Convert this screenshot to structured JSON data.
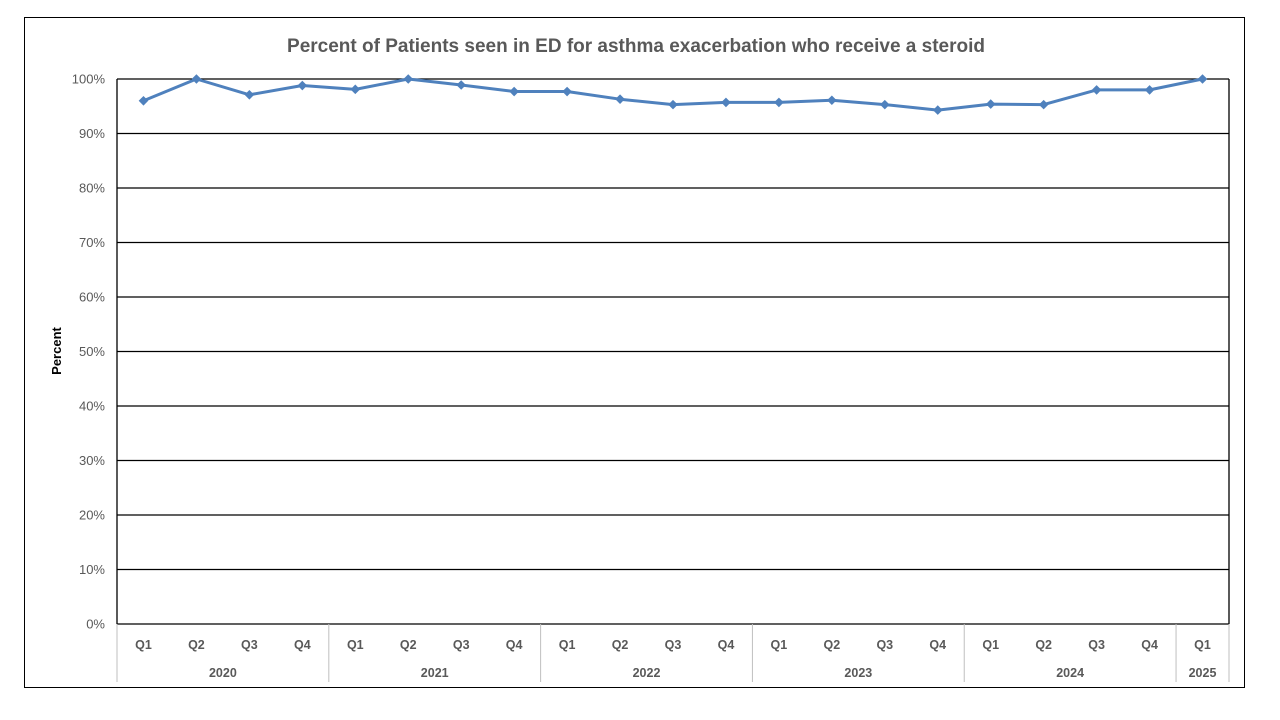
{
  "chart_data": {
    "type": "line",
    "title": "Percent of Patients seen in ED for asthma exacerbation who receive a steroid",
    "xlabel": "",
    "ylabel": "Percent",
    "ylim": [
      0,
      100
    ],
    "yticks": [
      "0%",
      "10%",
      "20%",
      "30%",
      "40%",
      "50%",
      "60%",
      "70%",
      "80%",
      "90%",
      "100%"
    ],
    "grid": true,
    "categories": [
      "Q1",
      "Q2",
      "Q3",
      "Q4",
      "Q1",
      "Q2",
      "Q3",
      "Q4",
      "Q1",
      "Q2",
      "Q3",
      "Q4",
      "Q1",
      "Q2",
      "Q3",
      "Q4",
      "Q1",
      "Q2",
      "Q3",
      "Q4",
      "Q1"
    ],
    "year_groups": [
      {
        "label": "2020",
        "count": 4
      },
      {
        "label": "2021",
        "count": 4
      },
      {
        "label": "2022",
        "count": 4
      },
      {
        "label": "2023",
        "count": 4
      },
      {
        "label": "2024",
        "count": 4
      },
      {
        "label": "2025",
        "count": 1
      }
    ],
    "series": [
      {
        "color": "#4F81BD",
        "values": [
          96.0,
          100.0,
          97.1,
          98.8,
          98.1,
          100.0,
          98.9,
          97.7,
          97.7,
          96.3,
          95.3,
          95.7,
          95.7,
          96.1,
          95.3,
          94.3,
          95.4,
          95.3,
          98.0,
          98.0,
          100.0
        ]
      }
    ]
  }
}
